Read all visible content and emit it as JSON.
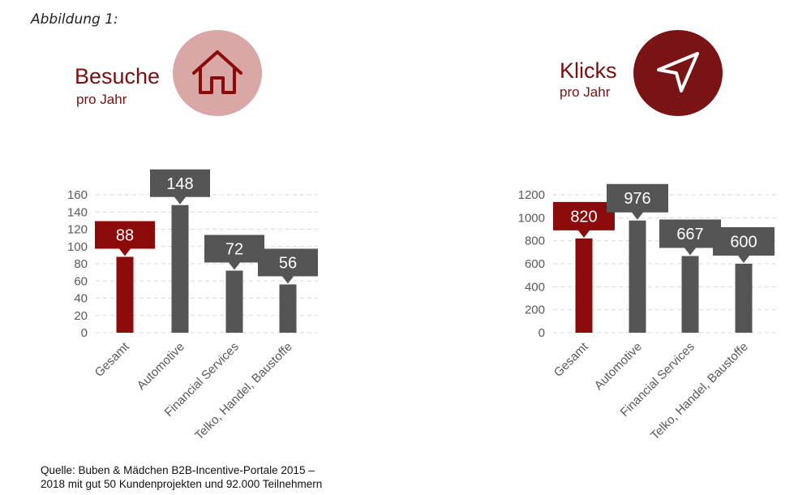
{
  "caption": "Abbildung 1:",
  "colors": {
    "accent": "#8b0b0b",
    "bar": "#555555",
    "label_box_accent": "#8b0b0b",
    "label_box": "#555555",
    "axis_text": "#595959",
    "title": "#7a1010"
  },
  "icons": {
    "left": "house-icon",
    "right": "cursor-arrow-icon"
  },
  "panels": [
    {
      "title": "Besuche",
      "subtitle": "pro Jahr"
    },
    {
      "title": "Klicks",
      "subtitle": "pro Jahr"
    }
  ],
  "source": {
    "line1": "Quelle: Buben & Mädchen B2B-Incentive-Portale 2015 –",
    "line2": "2018 mit gut 50 Kundenprojekten und 92.000 Teilnehmern"
  },
  "chart_data": [
    {
      "type": "bar",
      "title": "Besuche",
      "subtitle": "pro Jahr",
      "categories": [
        "Gesamt",
        "Automotive",
        "Financial Services",
        "Telko, Handel, Baustoffe"
      ],
      "values": [
        88,
        148,
        72,
        56
      ],
      "data_labels": [
        "88",
        "148",
        "72",
        "56"
      ],
      "highlight_index": 0,
      "yticks": [
        "0",
        "20",
        "40",
        "60",
        "80",
        "100",
        "120",
        "140",
        "160"
      ],
      "ylim": [
        0,
        160
      ],
      "grid": "dashed horizontal"
    },
    {
      "type": "bar",
      "title": "Klicks",
      "subtitle": "pro Jahr",
      "categories": [
        "Gesamt",
        "Automotive",
        "Financial Services",
        "Telko, Handel, Baustoffe"
      ],
      "values": [
        820,
        976,
        667,
        600
      ],
      "data_labels": [
        "820",
        "976",
        "667",
        "600"
      ],
      "highlight_index": 0,
      "yticks": [
        "0",
        "200",
        "400",
        "600",
        "800",
        "1000",
        "1200"
      ],
      "ylim": [
        0,
        1200
      ],
      "grid": "dashed horizontal"
    }
  ]
}
